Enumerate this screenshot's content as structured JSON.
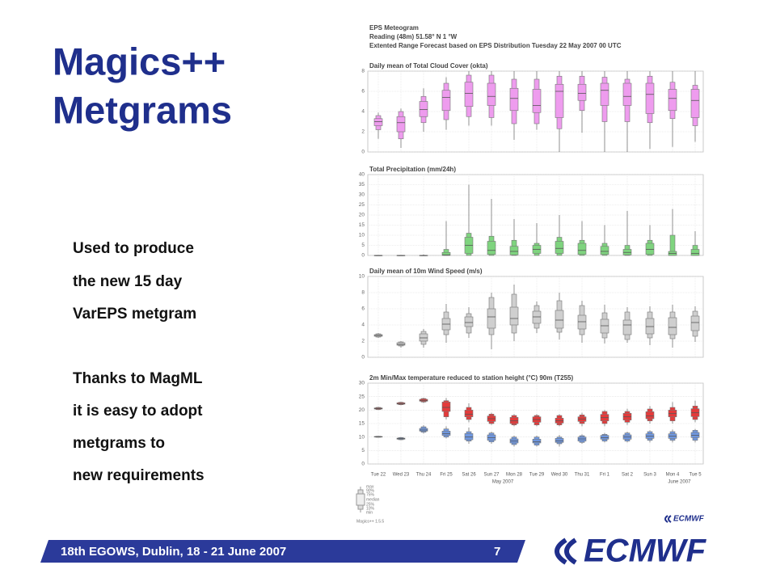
{
  "header": {
    "title_lines": [
      "Magics++",
      "Metgrams"
    ]
  },
  "body": {
    "lines": [
      "Used to produce",
      "the new 15 day",
      "VarEPS metgram",
      "Thanks to MagML",
      "it is easy to adopt",
      "metgrams to",
      "new requirements"
    ]
  },
  "footer": {
    "event": "18th EGOWS, Dublin, 18 - 21 June 2007",
    "page": "7",
    "logo": "ECMWF",
    "small_logo": "ECMWF"
  },
  "meteogram": {
    "heading": [
      "EPS Meteogram",
      "Reading (48m) 51.58° N 1 °W",
      "Extented Range Forecast based on EPS Distribution Tuesday 22 May 2007 00 UTC"
    ],
    "legend": [
      "max",
      "90%",
      "75%",
      "median",
      "25%",
      "10%",
      "min"
    ],
    "version": "Magics++ 1.5.5"
  },
  "chart_data": [
    {
      "type": "boxplot",
      "title": "Daily mean of Total Cloud Cover (okta)",
      "ylim": [
        0,
        8
      ],
      "yticks": [
        0,
        2,
        4,
        6,
        8
      ],
      "grid": true,
      "series": [
        {
          "color": "#ee9cee",
          "min": [
            1.3,
            0.4,
            2.0,
            2.2,
            2.6,
            2.6,
            1.2,
            2.2,
            0,
            1.9,
            0,
            0,
            0.3,
            0.5,
            1.0
          ],
          "p10": [
            2.2,
            1.3,
            2.9,
            3.2,
            3.5,
            3.4,
            2.8,
            2.8,
            2.3,
            4.1,
            3.0,
            3.0,
            2.9,
            3.3,
            2.6
          ],
          "p25": [
            2.6,
            2.0,
            3.5,
            4.1,
            4.5,
            4.6,
            4.1,
            3.9,
            3.4,
            5.1,
            4.6,
            4.6,
            3.8,
            4.1,
            3.4
          ],
          "median": [
            3.0,
            2.9,
            4.2,
            5.4,
            5.8,
            5.5,
            5.3,
            4.6,
            6.0,
            5.8,
            6.1,
            5.5,
            5.7,
            5.3,
            5.1
          ],
          "p75": [
            3.3,
            3.5,
            5.0,
            6.1,
            6.9,
            6.8,
            6.3,
            6.2,
            6.7,
            6.7,
            6.8,
            6.8,
            6.8,
            6.2,
            6.2
          ],
          "p90": [
            3.6,
            4.0,
            5.5,
            6.8,
            7.6,
            7.6,
            7.2,
            7.2,
            7.5,
            7.5,
            7.4,
            7.2,
            7.5,
            6.9,
            6.6
          ],
          "max": [
            3.9,
            4.3,
            6.3,
            7.4,
            8,
            8,
            8,
            8,
            8,
            8,
            8,
            8,
            8,
            8,
            8
          ]
        }
      ]
    },
    {
      "type": "boxplot",
      "title": "Total Precipitation (mm/24h)",
      "ylim": [
        0,
        40
      ],
      "yticks": [
        0,
        5,
        10,
        15,
        20,
        25,
        30,
        35,
        40
      ],
      "grid": true,
      "series": [
        {
          "color": "#7fd47f",
          "min": [
            0,
            0,
            0,
            0,
            0,
            0,
            0,
            0,
            0,
            0,
            0,
            0,
            0,
            0,
            0
          ],
          "p10": [
            0,
            0,
            0,
            0,
            0,
            0,
            0,
            0,
            0,
            0,
            0,
            0,
            0,
            0,
            0
          ],
          "p25": [
            0,
            0,
            0,
            0,
            1,
            0.5,
            0.3,
            1,
            1,
            0.5,
            0.5,
            0.3,
            0.5,
            0,
            0
          ],
          "median": [
            0,
            0,
            0,
            0.3,
            5,
            2.5,
            2,
            3,
            3.5,
            2.5,
            2,
            1.5,
            3,
            1,
            1
          ],
          "p75": [
            0,
            0,
            0,
            1.5,
            9,
            7,
            4.5,
            5,
            7,
            6,
            4.5,
            3,
            6,
            2,
            3
          ],
          "p90": [
            0,
            0,
            0,
            3,
            11,
            9.5,
            7.5,
            6,
            9,
            7.5,
            6,
            5,
            7.5,
            10,
            5
          ],
          "max": [
            0.2,
            0.2,
            0.5,
            17,
            35,
            28,
            18,
            16,
            20,
            17,
            15,
            22,
            15,
            23,
            12
          ]
        }
      ]
    },
    {
      "type": "boxplot",
      "title": "Daily mean of 10m Wind Speed (m/s)",
      "ylim": [
        0,
        10
      ],
      "yticks": [
        0,
        2,
        4,
        6,
        8,
        10
      ],
      "grid": true,
      "series": [
        {
          "color": "#cfcfcf",
          "min": [
            2.4,
            1.2,
            1.2,
            1.8,
            2.4,
            1.0,
            2.0,
            3.0,
            2.2,
            1.8,
            1.7,
            1.8,
            1.5,
            1.2,
            1.9
          ],
          "p10": [
            2.5,
            1.4,
            1.6,
            2.8,
            3.0,
            2.8,
            3.0,
            3.6,
            3.1,
            2.8,
            2.4,
            2.2,
            2.4,
            2.3,
            2.6
          ],
          "p25": [
            2.6,
            1.5,
            2.0,
            3.4,
            3.8,
            3.6,
            4.0,
            4.2,
            3.6,
            3.5,
            3.0,
            2.8,
            2.9,
            2.8,
            3.3
          ],
          "median": [
            2.7,
            1.6,
            2.4,
            4.1,
            4.3,
            5.0,
            4.8,
            5.0,
            4.6,
            4.4,
            3.9,
            4.0,
            3.8,
            3.7,
            4.3
          ],
          "p75": [
            2.8,
            1.8,
            2.9,
            4.8,
            5.0,
            6.0,
            6.2,
            5.7,
            5.8,
            5.2,
            4.7,
            4.6,
            4.8,
            4.9,
            5.1
          ],
          "p90": [
            2.9,
            1.9,
            3.2,
            5.6,
            5.4,
            7.4,
            7.8,
            6.4,
            7.0,
            6.4,
            5.5,
            5.6,
            5.6,
            5.6,
            5.7
          ],
          "max": [
            3.0,
            2.0,
            3.5,
            6.6,
            6.2,
            8.0,
            9.0,
            6.9,
            8.0,
            7.0,
            6.5,
            6.2,
            6.3,
            6.5,
            6.3
          ]
        }
      ]
    },
    {
      "type": "boxplot",
      "title": "2m Min/Max temperature reduced to station height (°C) 90m (T255)",
      "ylim": [
        0,
        30
      ],
      "yticks": [
        0,
        5,
        10,
        15,
        20,
        25,
        30
      ],
      "grid": true,
      "categories": [
        "Tue 22",
        "Wed 23",
        "Thu 24",
        "Fri 25",
        "Sat 26",
        "Sun 27",
        "Mon 28",
        "Tue 29",
        "Wed 30",
        "Thu 31",
        "Fri 1",
        "Sat 2",
        "Sun 3",
        "Mon 4",
        "Tue 5"
      ],
      "category_colors": [
        "#555555",
        "#555555",
        "#555555",
        "#555555",
        "#555555",
        "#e02020",
        "#555555",
        "#555555",
        "#555555",
        "#555555",
        "#555555",
        "#555555",
        "#e02020",
        "#555555",
        "#555555"
      ],
      "x_groups": [
        "May 2007",
        "June 2007"
      ],
      "series": [
        {
          "color": "#e43a3a",
          "min": [
            20,
            21.8,
            22.6,
            16.5,
            15.5,
            14.5,
            14,
            14,
            14,
            14,
            14,
            14.5,
            15,
            15,
            15.5
          ],
          "p10": [
            20.2,
            22,
            23,
            17.5,
            16.5,
            15,
            14.5,
            14.5,
            14.5,
            15,
            15,
            15.5,
            16,
            16,
            16.5
          ],
          "p25": [
            20.4,
            22.2,
            23.3,
            19.5,
            17.5,
            15.8,
            15,
            15.5,
            15.2,
            15.8,
            16,
            16.3,
            16.8,
            17.5,
            17.6
          ],
          "median": [
            20.6,
            22.4,
            23.6,
            21,
            18.5,
            16.8,
            16,
            16.5,
            16,
            16.7,
            17.2,
            17.5,
            17.8,
            18.7,
            19
          ],
          "p75": [
            20.8,
            22.7,
            24,
            23,
            20,
            17.8,
            17.3,
            17.5,
            17,
            17.5,
            18.4,
            18.8,
            19.4,
            20,
            20.5
          ],
          "p90": [
            21,
            22.9,
            24.3,
            23.5,
            21,
            18.5,
            18,
            18,
            18,
            18.2,
            19.5,
            19.5,
            20.4,
            21,
            21.5
          ],
          "max": [
            21.2,
            23.1,
            24.6,
            24.5,
            22.5,
            19,
            18.5,
            18.5,
            18.5,
            19,
            20,
            20.5,
            21.5,
            23,
            23.5
          ]
        },
        {
          "color": "#6f98e2",
          "min": [
            9.8,
            8.8,
            11.3,
            9.5,
            7.5,
            7.5,
            6.5,
            6.5,
            6.5,
            7.5,
            8,
            8,
            8,
            8,
            8
          ],
          "p10": [
            9.9,
            9,
            11.8,
            10,
            8.5,
            8.2,
            7.2,
            7,
            7.5,
            8,
            8.5,
            8.5,
            8.8,
            8.8,
            8.8
          ],
          "p25": [
            10,
            9.2,
            12.2,
            10.6,
            9,
            8.8,
            7.8,
            7.8,
            8,
            8.5,
            9.2,
            9.2,
            9.5,
            9.5,
            9.8
          ],
          "median": [
            10.1,
            9.4,
            12.6,
            11.3,
            10,
            9.8,
            8.5,
            8.3,
            8.6,
            9.3,
            9.8,
            10,
            10.3,
            10.3,
            10.6
          ],
          "p75": [
            10.2,
            9.6,
            13.2,
            12.2,
            11.3,
            10.8,
            9.3,
            9.2,
            9.5,
            10,
            10.6,
            10.8,
            11.2,
            11.2,
            11.7
          ],
          "p90": [
            10.3,
            9.8,
            13.8,
            13,
            12,
            11.5,
            10,
            10,
            10,
            10.5,
            11,
            11.5,
            12,
            12,
            12.5
          ],
          "max": [
            10.4,
            10,
            14.4,
            14,
            13.5,
            12,
            10.5,
            10.5,
            10.8,
            11,
            11.5,
            12,
            12.5,
            12.8,
            13
          ]
        }
      ]
    }
  ]
}
